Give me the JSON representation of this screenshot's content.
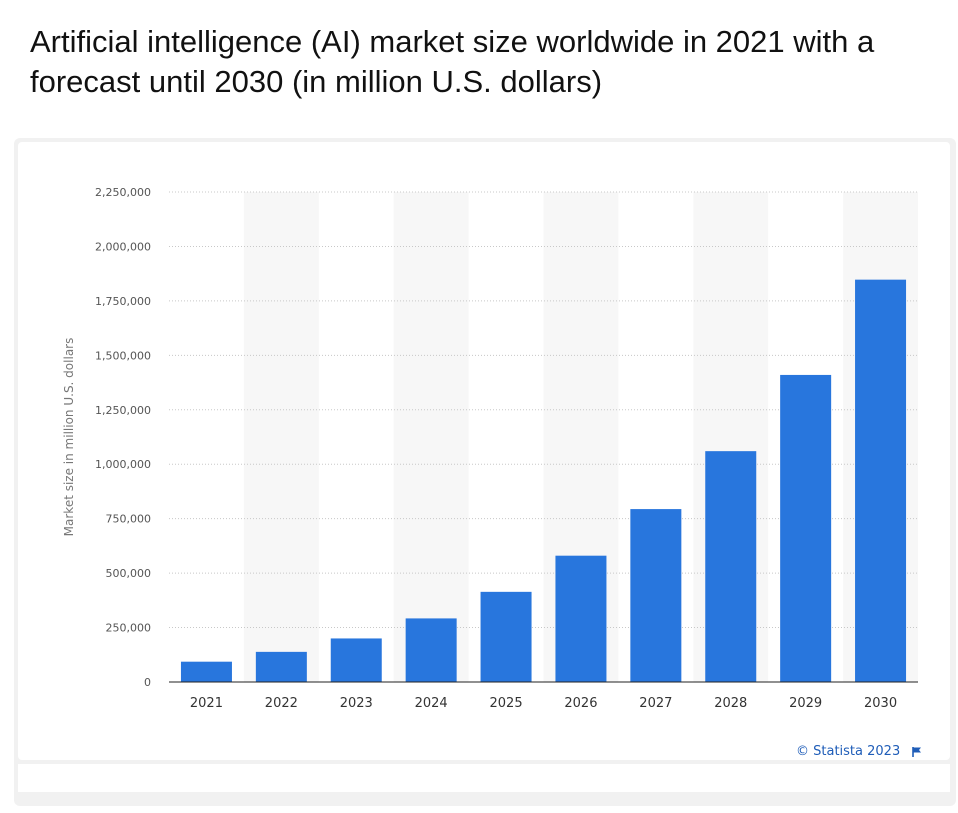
{
  "title": "Artificial intelligence (AI) market size worldwide in 2021 with a forecast until 2030 (in million U.S. dollars)",
  "credit": "© Statista 2023",
  "colors": {
    "bar": "#2876dd",
    "band": "#f7f7f7",
    "grid": "#c8c8c8"
  },
  "chart_data": {
    "type": "bar",
    "title": "Artificial intelligence (AI) market size worldwide in 2021 with a forecast until 2030 (in million U.S. dollars)",
    "xlabel": "",
    "ylabel": "Market size in million U.S. dollars",
    "categories": [
      "2021",
      "2022",
      "2023",
      "2024",
      "2025",
      "2026",
      "2027",
      "2028",
      "2029",
      "2030"
    ],
    "values": [
      93270,
      138400,
      200000,
      292000,
      414000,
      580000,
      794000,
      1060000,
      1410000,
      1847500
    ],
    "ylim": [
      0,
      2250000
    ],
    "yticks": [
      0,
      250000,
      500000,
      750000,
      1000000,
      1250000,
      1500000,
      1750000,
      2000000,
      2250000
    ],
    "ytick_labels": [
      "0",
      "250,000",
      "500,000",
      "750,000",
      "1,000,000",
      "1,250,000",
      "1,500,000",
      "1,750,000",
      "2,000,000",
      "2,250,000"
    ],
    "grid": true,
    "legend": "none"
  }
}
